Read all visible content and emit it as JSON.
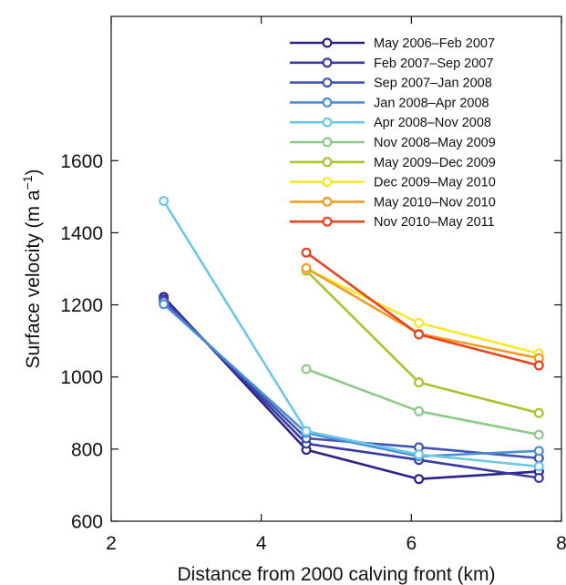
{
  "chart_data": {
    "type": "line",
    "xlabel": "Distance from 2000 calving front (km)",
    "ylabel": "Surface velocity (m a",
    "ylabel_sup": "−1",
    "ylabel_end": ")",
    "xlim": [
      2,
      8
    ],
    "ylim": [
      600,
      2000
    ],
    "xticks": [
      2,
      4,
      6,
      8
    ],
    "yticks": [
      600,
      800,
      1000,
      1200,
      1400,
      1600
    ],
    "grid": false,
    "legend_position": "top-right",
    "series": [
      {
        "name": "May 2006–Feb 2007",
        "color": "#2b2389",
        "points": [
          [
            2.7,
            1222
          ],
          [
            4.6,
            798
          ],
          [
            6.1,
            717
          ],
          [
            7.7,
            738
          ]
        ]
      },
      {
        "name": "Feb 2007–Sep 2007",
        "color": "#3a3aa3",
        "points": [
          [
            2.7,
            1215
          ],
          [
            4.6,
            815
          ],
          [
            6.1,
            770
          ],
          [
            7.7,
            720
          ]
        ]
      },
      {
        "name": "Sep 2007–Jan 2008",
        "color": "#4153b5",
        "points": [
          [
            2.7,
            1210
          ],
          [
            4.6,
            830
          ],
          [
            6.1,
            805
          ],
          [
            7.7,
            775
          ]
        ]
      },
      {
        "name": "Jan 2008–Apr 2008",
        "color": "#4a8fd6",
        "points": [
          [
            2.7,
            1202
          ],
          [
            4.6,
            845
          ],
          [
            6.1,
            780
          ],
          [
            7.7,
            795
          ]
        ]
      },
      {
        "name": "Apr 2008–Nov 2008",
        "color": "#6cc9e6",
        "points": [
          [
            2.7,
            1488
          ],
          [
            4.6,
            850
          ],
          [
            6.1,
            785
          ],
          [
            7.7,
            752
          ]
        ]
      },
      {
        "name": "Nov 2008–May 2009",
        "color": "#8ec98a",
        "points": [
          [
            4.6,
            1022
          ],
          [
            6.1,
            905
          ],
          [
            7.7,
            840
          ]
        ]
      },
      {
        "name": "May 2009–Dec 2009",
        "color": "#a9c42c",
        "points": [
          [
            4.6,
            1295
          ],
          [
            6.1,
            985
          ],
          [
            7.7,
            900
          ]
        ]
      },
      {
        "name": "Dec 2009–May 2010",
        "color": "#f7e82a",
        "points": [
          [
            4.6,
            1300
          ],
          [
            6.1,
            1150
          ],
          [
            7.7,
            1065
          ]
        ]
      },
      {
        "name": "May 2010–Nov 2010",
        "color": "#f29b22",
        "points": [
          [
            4.6,
            1302
          ],
          [
            6.1,
            1120
          ],
          [
            7.7,
            1052
          ]
        ]
      },
      {
        "name": "Nov 2010–May 2011",
        "color": "#e8431d",
        "points": [
          [
            4.6,
            1345
          ],
          [
            6.1,
            1118
          ],
          [
            7.7,
            1032
          ]
        ]
      }
    ]
  }
}
